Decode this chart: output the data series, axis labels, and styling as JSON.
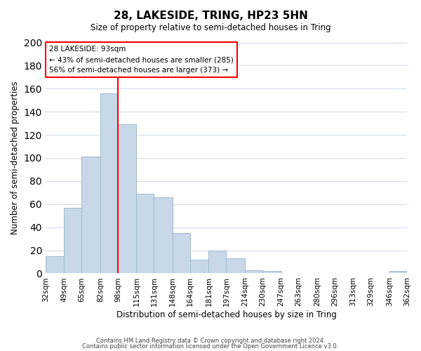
{
  "title": "28, LAKESIDE, TRING, HP23 5HN",
  "subtitle": "Size of property relative to semi-detached houses in Tring",
  "xlabel": "Distribution of semi-detached houses by size in Tring",
  "ylabel": "Number of semi-detached properties",
  "bar_color": "#c8d8e8",
  "bar_edge_color": "#a0b8cc",
  "background_color": "#ffffff",
  "grid_color": "#d0dce8",
  "vline_x": 98,
  "vline_color": "red",
  "categories": [
    "32sqm",
    "49sqm",
    "65sqm",
    "82sqm",
    "98sqm",
    "115sqm",
    "131sqm",
    "148sqm",
    "164sqm",
    "181sqm",
    "197sqm",
    "214sqm",
    "230sqm",
    "247sqm",
    "263sqm",
    "280sqm",
    "296sqm",
    "313sqm",
    "329sqm",
    "346sqm",
    "362sqm"
  ],
  "bin_edges": [
    32,
    49,
    65,
    82,
    98,
    115,
    131,
    148,
    164,
    181,
    197,
    214,
    230,
    247,
    263,
    280,
    296,
    313,
    329,
    346,
    362
  ],
  "values": [
    15,
    57,
    101,
    156,
    129,
    69,
    66,
    35,
    12,
    20,
    13,
    3,
    2,
    0,
    0,
    0,
    0,
    0,
    0,
    2
  ],
  "ylim": [
    0,
    200
  ],
  "yticks": [
    0,
    20,
    40,
    60,
    80,
    100,
    120,
    140,
    160,
    180,
    200
  ],
  "annotation_box_text_line1": "28 LAKESIDE: 93sqm",
  "annotation_box_text_line2": "← 43% of semi-detached houses are smaller (285)",
  "annotation_box_text_line3": "56% of semi-detached houses are larger (373) →",
  "annotation_box_color": "#ffffff",
  "annotation_box_edge_color": "red",
  "footer_line1": "Contains HM Land Registry data © Crown copyright and database right 2024.",
  "footer_line2": "Contains public sector information licensed under the Open Government Licence v3.0."
}
